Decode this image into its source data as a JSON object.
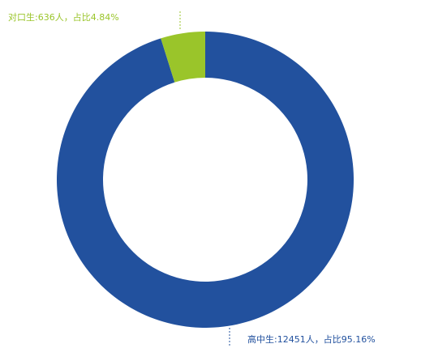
{
  "chart_data": {
    "type": "donut",
    "categories": [
      "高中生",
      "对口生"
    ],
    "values": [
      95.16,
      4.84
    ],
    "labels": [
      "高中生:12451人，占比95.16%",
      "对口生:636人，占比4.84%"
    ],
    "colors": [
      "#22519e",
      "#9ac52a"
    ]
  }
}
